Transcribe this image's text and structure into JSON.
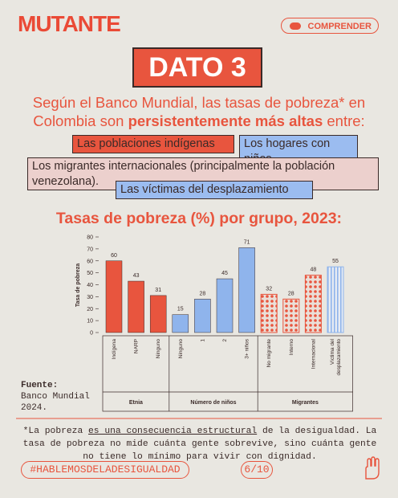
{
  "header": {
    "brand": "MUTANTE",
    "button": "COMPRENDER",
    "title": "DATO 3"
  },
  "intro": {
    "before": "Según el Banco Mundial, las tasas de pobreza* en Colombia son ",
    "bold": "persistentemente más altas",
    "after": " entre:"
  },
  "tags": [
    "Las poblaciones indígenas",
    "Los hogares con niños",
    "Los migrantes internacionales (principalmente la población venezolana).",
    "Las víctimas del desplazamiento"
  ],
  "chart_data": {
    "type": "bar",
    "title": "Tasas de pobreza (%) por grupo, 2023:",
    "y_label": "Tasa de pobreza",
    "ylim": [
      0,
      80
    ],
    "yticks": [
      0,
      10,
      20,
      30,
      40,
      50,
      60,
      70,
      80
    ],
    "groups": [
      {
        "name": "Etnia",
        "categories": [
          "Indígena",
          "NARP",
          "Ninguno"
        ],
        "values": [
          60,
          43,
          31
        ],
        "colors": [
          "#e8553e",
          "#e8553e",
          "#e8553e"
        ],
        "fills": [
          "solid",
          "solid",
          "solid"
        ]
      },
      {
        "name": "Número de niños",
        "categories": [
          "Ninguno",
          "1",
          "2",
          "3+ niños"
        ],
        "values": [
          15,
          28,
          45,
          71
        ],
        "colors": [
          "#8fb4ec",
          "#8fb4ec",
          "#8fb4ec",
          "#8fb4ec"
        ],
        "fills": [
          "solid",
          "solid",
          "solid",
          "solid"
        ]
      },
      {
        "name": "Migrantes",
        "categories": [
          "No migrante",
          "Interno",
          "Internacional",
          "Víctima del desplazamiento"
        ],
        "values": [
          32,
          28,
          48,
          55
        ],
        "colors": [
          "#e8553e",
          "#e8553e",
          "#e8553e",
          "#8fb4ec"
        ],
        "fills": [
          "dots",
          "dots",
          "dots",
          "stripes"
        ]
      }
    ]
  },
  "source": {
    "label": "Fuente:",
    "text": "Banco Mundial 2024."
  },
  "footnote": {
    "before": "*La pobreza ",
    "underline": "es una consecuencia estructural",
    "after": " de la desigualdad. La tasa de pobreza no mide cuánta gente sobrevive, sino cuánta gente no tiene lo mínimo para vivir con dignidad."
  },
  "footer": {
    "hashtag": "#HABLEMOSDELADESIGUALDAD",
    "page": "6/10"
  }
}
